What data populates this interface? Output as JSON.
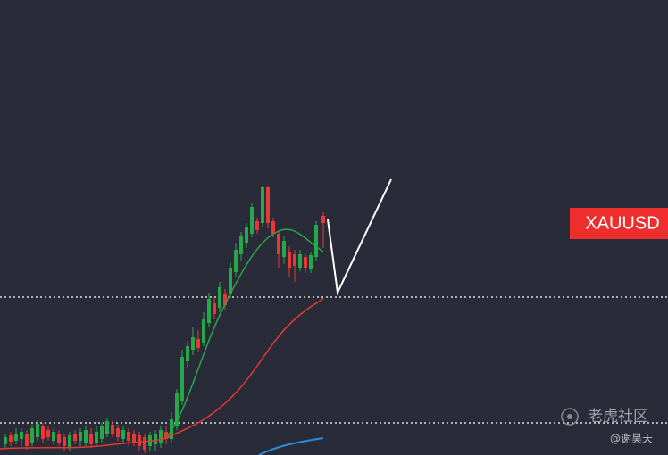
{
  "symbol_label": "XAUUSD",
  "watermark": {
    "brand": "老虎社区",
    "author": "@谢昊天"
  }
}
